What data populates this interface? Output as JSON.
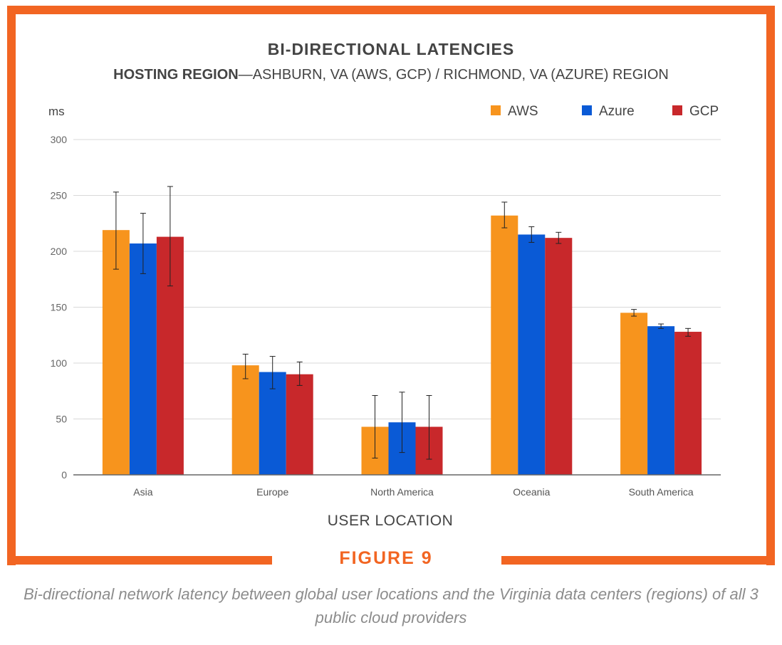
{
  "figure": {
    "label": "FIGURE 9",
    "caption": "Bi-directional network latency between global user locations and the Virginia data centers (regions) of all 3 public cloud providers"
  },
  "colors": {
    "frame": "#f26522",
    "grid": "#d9d9d9",
    "axis": "#666666",
    "text": "#444444"
  },
  "chart_data": {
    "type": "bar",
    "title": "BI-DIRECTIONAL LATENCIES",
    "subtitle_bold": "HOSTING REGION",
    "subtitle_rest": "—ASHBURN, VA (AWS, GCP) / RICHMOND, VA (AZURE) REGION",
    "ylabel": "ms",
    "xlabel": "USER LOCATION",
    "ylim": [
      0,
      300
    ],
    "yticks": [
      0,
      50,
      100,
      150,
      200,
      250,
      300
    ],
    "grid": true,
    "legend_position": "top-right",
    "categories": [
      "Asia",
      "Europe",
      "North America",
      "Oceania",
      "South America"
    ],
    "series": [
      {
        "name": "AWS",
        "color": "#f7941d",
        "values": [
          219,
          98,
          43,
          232,
          145
        ],
        "error_low": [
          184,
          86,
          15,
          221,
          142
        ],
        "error_high": [
          253,
          108,
          71,
          244,
          148
        ]
      },
      {
        "name": "Azure",
        "color": "#0a5ad6",
        "values": [
          207,
          92,
          47,
          215,
          133
        ],
        "error_low": [
          180,
          77,
          20,
          208,
          131
        ],
        "error_high": [
          234,
          106,
          74,
          222,
          135
        ]
      },
      {
        "name": "GCP",
        "color": "#c8282b",
        "values": [
          213,
          90,
          43,
          212,
          128
        ],
        "error_low": [
          169,
          80,
          14,
          207,
          124
        ],
        "error_high": [
          258,
          101,
          71,
          217,
          131
        ]
      }
    ]
  }
}
